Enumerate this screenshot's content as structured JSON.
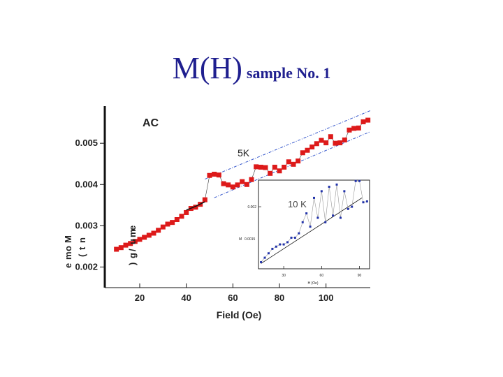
{
  "slide": {
    "title_main": "M(H)",
    "title_sub": "sample No. 1"
  },
  "chart_data": [
    {
      "type": "scatter",
      "title": "",
      "annotations": [
        "AC",
        "5K"
      ],
      "xlabel": "Field (Oe)",
      "ylabel": "Moment (emu/g)",
      "ylabel_display": [
        "M",
        "o",
        "m",
        "e",
        "n",
        "t",
        "(",
        "e",
        "m",
        "u",
        "/",
        "g",
        ")"
      ],
      "xlim": [
        5,
        119
      ],
      "ylim": [
        0.0015,
        0.0059
      ],
      "xticks": [
        20,
        40,
        60,
        80,
        100
      ],
      "yticks": [
        0.002,
        0.003,
        0.004,
        0.005
      ],
      "xtick_labels": [
        "20",
        "40",
        "60",
        "80",
        "100"
      ],
      "ytick_labels": [
        "0.002",
        "0.003",
        "0.004",
        "0.005"
      ],
      "grid": false,
      "series": [
        {
          "color": "#dd1a1a",
          "marker": "square",
          "x": [
            10,
            12,
            14,
            16,
            18,
            20,
            22,
            24,
            26,
            28,
            30,
            32,
            34,
            36,
            38,
            40,
            42,
            44,
            46,
            48,
            50,
            52,
            54,
            56,
            58,
            60,
            62,
            64,
            66,
            68,
            70,
            72,
            74,
            76,
            78,
            80,
            82,
            84,
            86,
            88,
            90,
            92,
            94,
            96,
            98,
            100,
            102,
            104,
            106,
            108,
            110,
            112,
            114,
            116,
            118
          ],
          "y": [
            0.00243,
            0.00247,
            0.00253,
            0.00257,
            0.00262,
            0.00267,
            0.00272,
            0.00277,
            0.00282,
            0.00289,
            0.00297,
            0.00304,
            0.00308,
            0.00315,
            0.00323,
            0.00332,
            0.00342,
            0.00345,
            0.00352,
            0.00363,
            0.00422,
            0.00425,
            0.00423,
            0.00402,
            0.00399,
            0.00394,
            0.00399,
            0.00407,
            0.004,
            0.00412,
            0.00443,
            0.00442,
            0.00441,
            0.00427,
            0.00442,
            0.00433,
            0.00442,
            0.00455,
            0.00449,
            0.00457,
            0.00477,
            0.00483,
            0.00491,
            0.00499,
            0.00507,
            0.00501,
            0.00516,
            0.005,
            0.00501,
            0.00508,
            0.00532,
            0.00536,
            0.00537,
            0.00552,
            0.00556
          ]
        },
        {
          "color": "#111111",
          "marker": "line",
          "x": [
            40,
            44,
            48
          ],
          "y": [
            0.00338,
            0.00347,
            0.00358
          ]
        }
      ],
      "guide_lines": [
        {
          "style": "dash-dot",
          "color": "#3355cc",
          "x": [
            48,
            119
          ],
          "y": [
            0.00413,
            0.00579
          ]
        },
        {
          "style": "dash-dot",
          "color": "#3355cc",
          "x": [
            52,
            119
          ],
          "y": [
            0.00368,
            0.00528
          ]
        }
      ]
    },
    {
      "type": "scatter",
      "annotations": [
        "10 K"
      ],
      "xlabel": "H (Oe)",
      "ylabel": "M",
      "ylabel_extra": "0.0015",
      "xlim": [
        10,
        98
      ],
      "ylim": [
        0.0006,
        0.0026
      ],
      "xticks": [
        30,
        60,
        90
      ],
      "yticks": [
        0.002
      ],
      "xtick_labels": [
        "30",
        "60",
        "90"
      ],
      "ytick_labels": [
        "0.002"
      ],
      "grid": false,
      "series": [
        {
          "color": "#2233aa",
          "marker": "square",
          "x": [
            12,
            15,
            18,
            21,
            24,
            27,
            30,
            33,
            36,
            39,
            42,
            45,
            48,
            51,
            54,
            57,
            60,
            63,
            66,
            69,
            72,
            75,
            78,
            81,
            84,
            87,
            90,
            93,
            96
          ],
          "y": [
            0.00075,
            0.00085,
            0.00095,
            0.00105,
            0.0011,
            0.00115,
            0.00115,
            0.0012,
            0.0013,
            0.0013,
            0.0014,
            0.00165,
            0.00185,
            0.00155,
            0.0022,
            0.00175,
            0.00235,
            0.00165,
            0.00245,
            0.0018,
            0.0025,
            0.00175,
            0.00235,
            0.00195,
            0.002,
            0.00258,
            0.00258,
            0.0021,
            0.00212
          ]
        }
      ],
      "guide_lines": [
        {
          "style": "solid",
          "color": "#111111",
          "x": [
            12,
            92
          ],
          "y": [
            0.00072,
            0.0022
          ]
        }
      ]
    }
  ]
}
